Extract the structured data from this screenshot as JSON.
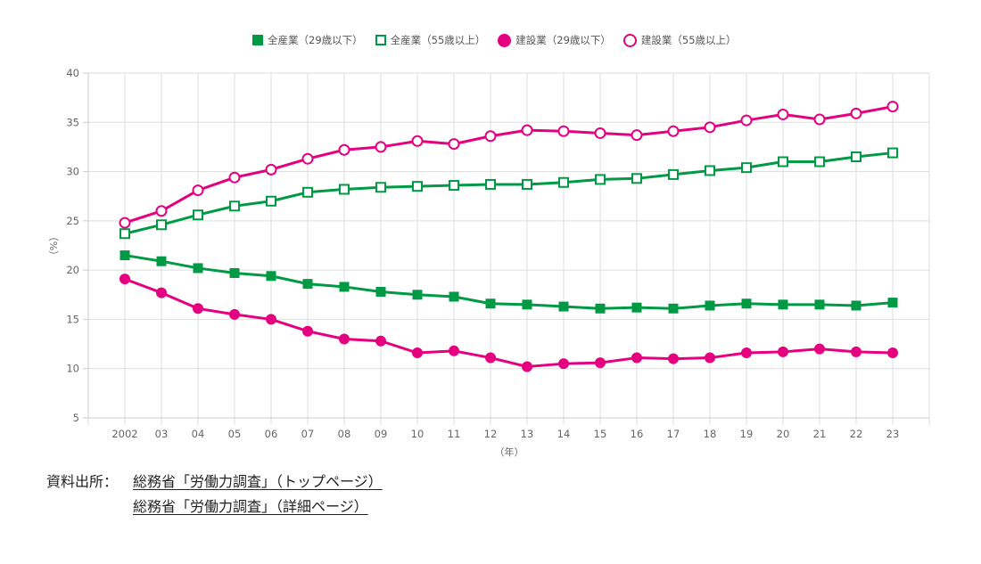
{
  "chart_data": {
    "type": "line",
    "title": "",
    "xlabel": "（年）",
    "ylabel": "（%）",
    "ylim": [
      5,
      40
    ],
    "yticks": [
      5,
      10,
      15,
      20,
      25,
      30,
      35,
      40
    ],
    "grid": true,
    "legend_position": "top-center",
    "categories": [
      "2002",
      "03",
      "04",
      "05",
      "06",
      "07",
      "08",
      "09",
      "10",
      "11",
      "12",
      "13",
      "14",
      "15",
      "16",
      "17",
      "18",
      "19",
      "20",
      "21",
      "22",
      "23"
    ],
    "series": [
      {
        "name": "全産業（29歳以下）",
        "color": "#009944",
        "marker": "square-filled",
        "values": [
          21.5,
          20.9,
          20.2,
          19.7,
          19.4,
          18.6,
          18.3,
          17.8,
          17.5,
          17.3,
          16.6,
          16.5,
          16.3,
          16.1,
          16.2,
          16.1,
          16.4,
          16.6,
          16.5,
          16.5,
          16.4,
          16.7
        ]
      },
      {
        "name": "全産業（55歳以上）",
        "color": "#009944",
        "marker": "square-open",
        "values": [
          23.7,
          24.6,
          25.6,
          26.5,
          27.0,
          27.9,
          28.2,
          28.4,
          28.5,
          28.6,
          28.7,
          28.7,
          28.9,
          29.2,
          29.3,
          29.7,
          30.1,
          30.4,
          31.0,
          31.0,
          31.5,
          31.9
        ]
      },
      {
        "name": "建設業（29歳以下）",
        "color": "#e4007f",
        "marker": "circle-filled",
        "values": [
          19.1,
          17.7,
          16.1,
          15.5,
          15.0,
          13.8,
          13.0,
          12.8,
          11.6,
          11.8,
          11.1,
          10.2,
          10.5,
          10.6,
          11.1,
          11.0,
          11.1,
          11.6,
          11.7,
          12.0,
          11.7,
          11.6
        ]
      },
      {
        "name": "建設業（55歳以上）",
        "color": "#e4007f",
        "marker": "circle-open",
        "values": [
          24.8,
          26.0,
          28.1,
          29.4,
          30.2,
          31.3,
          32.2,
          32.5,
          33.1,
          32.8,
          33.6,
          34.2,
          34.1,
          33.9,
          33.7,
          34.1,
          34.5,
          35.2,
          35.8,
          35.3,
          35.9,
          36.6
        ]
      }
    ]
  },
  "source": {
    "label": "資料出所：",
    "links": [
      "総務省「労働力調査」（トップページ）",
      "総務省「労働力調査」（詳細ページ）"
    ]
  }
}
